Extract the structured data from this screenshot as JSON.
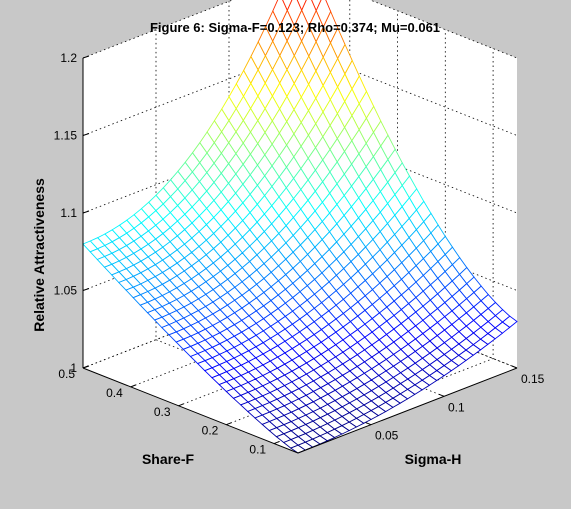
{
  "chart_data": {
    "type": "surface",
    "title": "Figure 6: Sigma-F=0.123; Rho=0.374; Mu=0.061",
    "xlabel": "Sigma-H",
    "ylabel": "Share-F",
    "zlabel": "Relative Attractiveness",
    "x_range": [
      0,
      0.15
    ],
    "y_range": [
      0.05,
      0.5
    ],
    "z_range": [
      1,
      1.2
    ],
    "x_ticks": [
      "0.05",
      "0.1",
      "0.15"
    ],
    "y_ticks": [
      "0.1",
      "0.2",
      "0.3",
      "0.4",
      "0.5"
    ],
    "z_ticks": [
      "1",
      "1.05",
      "1.1",
      "1.15",
      "1.2"
    ],
    "grid": true,
    "colormap": "jet",
    "corner_values": [
      {
        "sigma_h": 0.15,
        "share_f": 0.5,
        "value": 1.22
      },
      {
        "sigma_h": 0.0,
        "share_f": 0.5,
        "value": 1.08
      },
      {
        "sigma_h": 0.15,
        "share_f": 0.05,
        "value": 1.03
      },
      {
        "sigma_h": 0.0,
        "share_f": 0.05,
        "value": 1.0
      }
    ]
  }
}
